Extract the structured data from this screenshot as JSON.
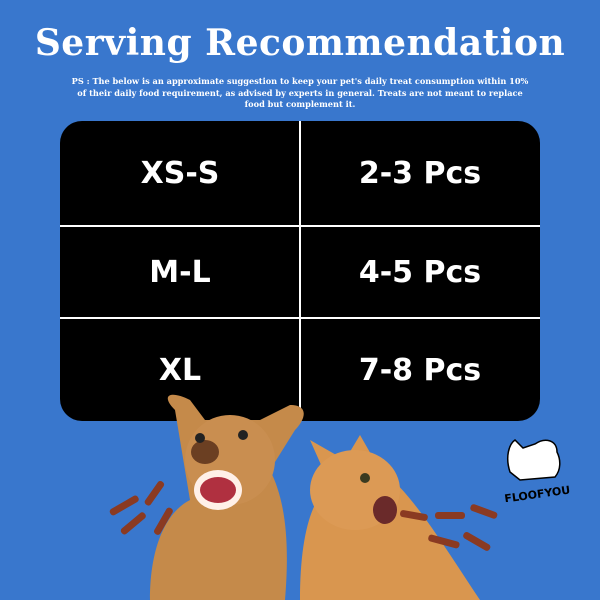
{
  "header": {
    "title": "Serving Recommendation",
    "note": "PS : The below is an approximate suggestion to keep your pet's daily treat consumption within 10% of their daily food requirement, as advised by experts in general. Treats are not meant to replace food but complement it."
  },
  "table": {
    "rows": [
      {
        "size": "XS-S",
        "amount": "2-3 Pcs"
      },
      {
        "size": "M-L",
        "amount": "4-5 Pcs"
      },
      {
        "size": "XL",
        "amount": "7-8 Pcs"
      }
    ]
  },
  "brand": {
    "name": "FLOOFYOU"
  },
  "colors": {
    "background": "#3977cd",
    "table": "#000000",
    "text": "#ffffff"
  }
}
